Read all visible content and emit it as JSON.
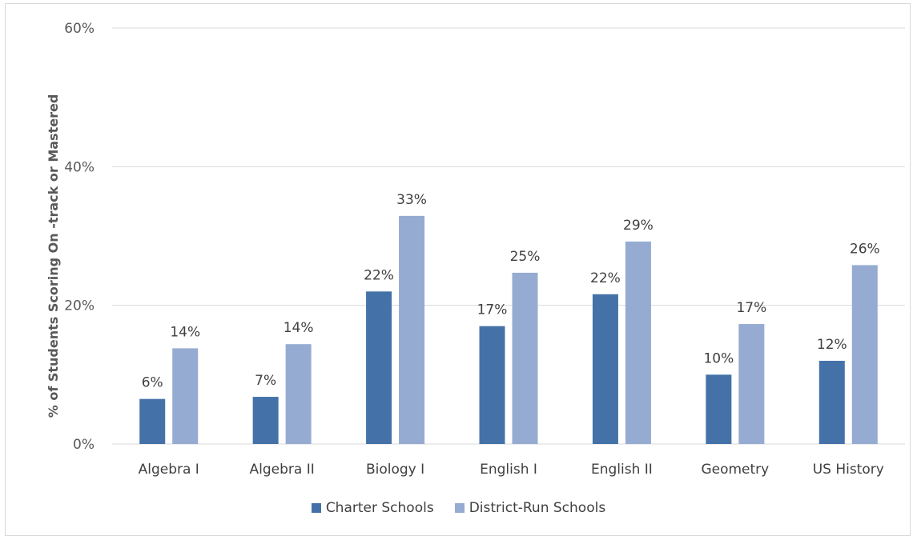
{
  "chart_data": {
    "type": "bar",
    "categories": [
      "Algebra I",
      "Algebra II",
      "Biology I",
      "English I",
      "English II",
      "Geometry",
      "US History"
    ],
    "series": [
      {
        "name": "Charter Schools",
        "color": "#4472a8",
        "values": [
          6.5,
          6.8,
          22.0,
          17.0,
          21.6,
          10.0,
          12.0
        ],
        "labels": [
          "6%",
          "7%",
          "22%",
          "17%",
          "22%",
          "10%",
          "12%"
        ]
      },
      {
        "name": "District-Run Schools",
        "color": "#95abd2",
        "values": [
          13.8,
          14.4,
          32.9,
          24.7,
          29.2,
          17.3,
          25.8
        ],
        "labels": [
          "14%",
          "14%",
          "33%",
          "25%",
          "29%",
          "17%",
          "26%"
        ]
      }
    ],
    "ylabel": "% of Students Scoring On -track or Mastered",
    "ylim": [
      0,
      60
    ],
    "yticks": [
      0,
      20,
      40,
      60
    ],
    "ytick_labels": [
      "0%",
      "20%",
      "40%",
      "60%"
    ],
    "grid": true,
    "legend_position": "bottom"
  }
}
